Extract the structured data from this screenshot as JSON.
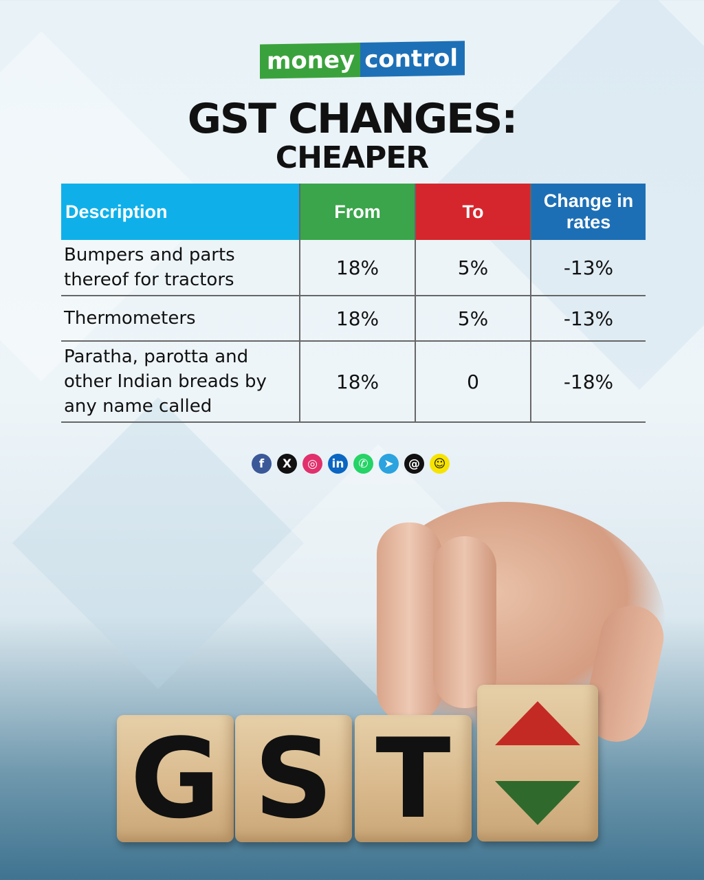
{
  "logo": {
    "money": "money",
    "control": "control"
  },
  "title": "GST CHANGES:",
  "subtitle": "CHEAPER",
  "table": {
    "headers": {
      "description": "Description",
      "from": "From",
      "to": "To",
      "change": "Change in rates"
    },
    "rows": [
      {
        "description": "Bumpers and parts thereof for tractors",
        "from": "18%",
        "to": "5%",
        "change": "-13%"
      },
      {
        "description": "Thermometers",
        "from": "18%",
        "to": "5%",
        "change": "-13%"
      },
      {
        "description": "Paratha, parotta and other Indian breads by any name called",
        "from": "18%",
        "to": "0",
        "change": "-18%"
      }
    ]
  },
  "social_icons": [
    {
      "name": "facebook-icon",
      "glyph": "f",
      "color": "#3b5998"
    },
    {
      "name": "x-icon",
      "glyph": "X",
      "color": "#111111"
    },
    {
      "name": "instagram-icon",
      "glyph": "◎",
      "color": "#e1306c"
    },
    {
      "name": "linkedin-icon",
      "glyph": "in",
      "color": "#0a66c2"
    },
    {
      "name": "whatsapp-icon",
      "glyph": "✆",
      "color": "#25d366"
    },
    {
      "name": "telegram-icon",
      "glyph": "➤",
      "color": "#2aa3df"
    },
    {
      "name": "threads-icon",
      "glyph": "@",
      "color": "#111111"
    },
    {
      "name": "snapchat-icon",
      "glyph": "☺",
      "color": "#f7e300"
    }
  ],
  "cubes": {
    "g": "G",
    "s": "S",
    "t": "T"
  },
  "colors": {
    "from_header": "#3aa54a",
    "to_header": "#d6262d",
    "change_header": "#1d6fb5",
    "description_header": "#0fb0ea"
  }
}
